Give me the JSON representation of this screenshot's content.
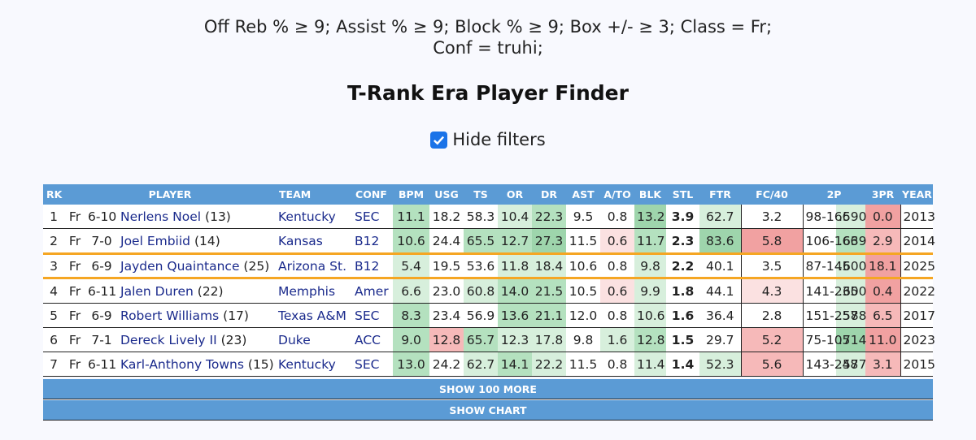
{
  "filters_text": "Off Reb % ≥ 9; Assist % ≥ 9; Block % ≥ 9; Box +/- ≥ 3; Class = Fr; Conf = truhi;",
  "title": "T-Rank Era Player Finder",
  "hide_filters": {
    "label": "Hide filters",
    "checked": true
  },
  "columns": [
    "RK",
    "PLAYER",
    "TEAM",
    "CONF",
    "BPM",
    "USG",
    "TS",
    "OR",
    "DR",
    "AST",
    "A/TO",
    "BLK",
    "STL",
    "FTR",
    "FC/40",
    "2P",
    "3PR",
    "YEAR"
  ],
  "rows": [
    {
      "rk": "1",
      "cls": "Fr",
      "ht": "6-10",
      "player": "Nerlens Noel",
      "pick": "(13)",
      "team": "Kentucky",
      "conf": "SEC",
      "bpm": "11.1",
      "usg": "18.2",
      "ts": "58.3",
      "or": "10.4",
      "dr": "22.3",
      "ast": "9.5",
      "ato": "0.8",
      "blk": "13.2",
      "stl": "3.9",
      "ftr": "62.7",
      "fc40": "3.2",
      "twop": "98-166",
      "twop_pct": ".590",
      "threepr": "0.0",
      "year": "2013"
    },
    {
      "rk": "2",
      "cls": "Fr",
      "ht": "7-0",
      "player": "Joel Embiid",
      "pick": "(14)",
      "team": "Kansas",
      "conf": "B12",
      "bpm": "10.6",
      "usg": "24.4",
      "ts": "65.5",
      "or": "12.7",
      "dr": "27.3",
      "ast": "11.5",
      "ato": "0.6",
      "blk": "11.7",
      "stl": "2.3",
      "ftr": "83.6",
      "fc40": "5.8",
      "twop": "106-166",
      "twop_pct": ".639",
      "threepr": "2.9",
      "year": "2014"
    },
    {
      "rk": "3",
      "cls": "Fr",
      "ht": "6-9",
      "player": "Jayden Quaintance",
      "pick": "(25)",
      "team": "Arizona St.",
      "conf": "B12",
      "bpm": "5.4",
      "usg": "19.5",
      "ts": "53.6",
      "or": "11.8",
      "dr": "18.4",
      "ast": "10.6",
      "ato": "0.8",
      "blk": "9.8",
      "stl": "2.2",
      "ftr": "40.1",
      "fc40": "3.5",
      "twop": "87-145",
      "twop_pct": ".600",
      "threepr": "18.1",
      "year": "2025"
    },
    {
      "rk": "4",
      "cls": "Fr",
      "ht": "6-11",
      "player": "Jalen Duren",
      "pick": "(22)",
      "team": "Memphis",
      "conf": "Amer",
      "bpm": "6.6",
      "usg": "23.0",
      "ts": "60.8",
      "or": "14.0",
      "dr": "21.5",
      "ast": "10.5",
      "ato": "0.6",
      "blk": "9.9",
      "stl": "1.8",
      "ftr": "44.1",
      "fc40": "4.3",
      "twop": "141-235",
      "twop_pct": ".600",
      "threepr": "0.4",
      "year": "2022"
    },
    {
      "rk": "5",
      "cls": "Fr",
      "ht": "6-9",
      "player": "Robert Williams",
      "pick": "(17)",
      "team": "Texas A&M",
      "conf": "SEC",
      "bpm": "8.3",
      "usg": "23.4",
      "ts": "56.9",
      "or": "13.6",
      "dr": "21.1",
      "ast": "12.0",
      "ato": "0.8",
      "blk": "10.6",
      "stl": "1.6",
      "ftr": "36.4",
      "fc40": "2.8",
      "twop": "151-257",
      "twop_pct": ".588",
      "threepr": "6.5",
      "year": "2017"
    },
    {
      "rk": "6",
      "cls": "Fr",
      "ht": "7-1",
      "player": "Dereck Lively II",
      "pick": "(23)",
      "team": "Duke",
      "conf": "ACC",
      "bpm": "9.0",
      "usg": "12.8",
      "ts": "65.7",
      "or": "12.3",
      "dr": "17.8",
      "ast": "9.8",
      "ato": "1.6",
      "blk": "12.8",
      "stl": "1.5",
      "ftr": "29.7",
      "fc40": "5.2",
      "twop": "75-105",
      "twop_pct": ".714",
      "threepr": "11.0",
      "year": "2023"
    },
    {
      "rk": "7",
      "cls": "Fr",
      "ht": "6-11",
      "player": "Karl-Anthony Towns",
      "pick": "(15)",
      "team": "Kentucky",
      "conf": "SEC",
      "bpm": "13.0",
      "usg": "24.2",
      "ts": "62.7",
      "or": "14.1",
      "dr": "22.2",
      "ast": "11.5",
      "ato": "0.8",
      "blk": "11.4",
      "stl": "1.4",
      "ftr": "52.3",
      "fc40": "5.6",
      "twop": "143-248",
      "twop_pct": ".577",
      "threepr": "3.1",
      "year": "2015"
    }
  ],
  "buttons": {
    "show_more": "SHOW 100 MORE",
    "show_chart": "SHOW CHART"
  }
}
